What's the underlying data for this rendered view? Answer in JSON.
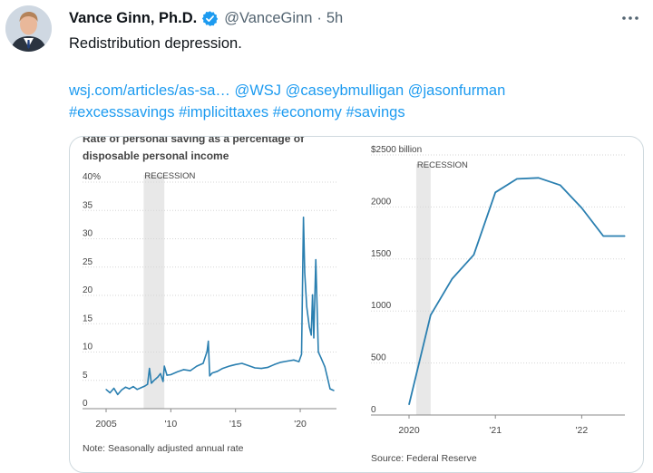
{
  "tweet": {
    "author_name": "Vance Ginn, Ph.D.",
    "handle": "@VanceGinn",
    "separator": "·",
    "time": "5h",
    "text": "Redistribution depression.",
    "links_line1": [
      "wsj.com/articles/as-sa…",
      "@WSJ",
      "@caseybmulligan",
      "@jasonfurman"
    ],
    "links_line2": [
      "#excesssavings",
      "#implicittaxes",
      "#economy",
      "#savings"
    ]
  },
  "colors": {
    "link": "#1d9bf0",
    "verified": "#1d9bf0",
    "series": "#2a7fb0",
    "recession": "#e8e8e8"
  },
  "chart_data": [
    {
      "type": "line",
      "title": "Rate of personal saving as a percentage of disposable personal income",
      "title_lines": [
        "Rate of personal saving as a percentage of",
        "disposable personal income"
      ],
      "recession_label": "RECESSION",
      "recession_span": [
        2007.9,
        2009.5
      ],
      "ylim": [
        0,
        40
      ],
      "yticks": [
        {
          "v": 40,
          "label": "40%"
        },
        {
          "v": 35,
          "label": "35"
        },
        {
          "v": 30,
          "label": "30"
        },
        {
          "v": 25,
          "label": "25"
        },
        {
          "v": 20,
          "label": "20"
        },
        {
          "v": 15,
          "label": "15"
        },
        {
          "v": 10,
          "label": "10"
        },
        {
          "v": 5,
          "label": "5"
        },
        {
          "v": 0,
          "label": "0"
        }
      ],
      "xlim": [
        2005,
        2022.8
      ],
      "xticks": [
        {
          "v": 2005,
          "label": "2005"
        },
        {
          "v": 2010,
          "label": "'10"
        },
        {
          "v": 2015,
          "label": "'15"
        },
        {
          "v": 2020,
          "label": "'20"
        }
      ],
      "note": "Note: Seasonally adjusted annual rate",
      "x": [
        2005.0,
        2005.3,
        2005.6,
        2005.9,
        2006.2,
        2006.5,
        2006.8,
        2007.1,
        2007.4,
        2007.7,
        2008.0,
        2008.2,
        2008.35,
        2008.5,
        2008.7,
        2009.0,
        2009.2,
        2009.4,
        2009.5,
        2009.7,
        2010.0,
        2010.5,
        2011.0,
        2011.5,
        2012.0,
        2012.5,
        2012.8,
        2012.9,
        2013.0,
        2013.2,
        2013.6,
        2014.0,
        2014.5,
        2015.0,
        2015.5,
        2016.0,
        2016.5,
        2017.0,
        2017.5,
        2018.0,
        2018.5,
        2019.0,
        2019.5,
        2019.9,
        2020.1,
        2020.25,
        2020.35,
        2020.5,
        2020.7,
        2020.85,
        2020.95,
        2021.05,
        2021.2,
        2021.4,
        2021.6,
        2021.9,
        2022.1,
        2022.3,
        2022.6
      ],
      "y": [
        3.4,
        2.8,
        3.6,
        2.5,
        3.3,
        3.8,
        3.5,
        3.9,
        3.4,
        3.7,
        4.0,
        4.3,
        7.1,
        4.5,
        5.0,
        5.6,
        6.2,
        4.8,
        7.5,
        5.9,
        6.0,
        6.5,
        6.9,
        6.7,
        7.5,
        8.0,
        10.1,
        11.9,
        5.8,
        6.3,
        6.6,
        7.1,
        7.5,
        7.8,
        8.0,
        7.6,
        7.2,
        7.1,
        7.3,
        7.8,
        8.2,
        8.4,
        8.6,
        8.3,
        9.6,
        33.8,
        24.0,
        18.0,
        14.5,
        13.0,
        20.1,
        12.5,
        26.3,
        10.0,
        9.0,
        7.4,
        5.5,
        3.5,
        3.2
      ]
    },
    {
      "type": "line",
      "title": "",
      "ylim": [
        0,
        2500
      ],
      "yticks": [
        {
          "v": 2500,
          "label": "$2500 billion"
        },
        {
          "v": 2000,
          "label": "2000"
        },
        {
          "v": 1500,
          "label": "1500"
        },
        {
          "v": 1000,
          "label": "1000"
        },
        {
          "v": 500,
          "label": "500"
        },
        {
          "v": 0,
          "label": "0"
        }
      ],
      "recession_label": "RECESSION",
      "recession_span": [
        "2020-02-01",
        "2020-04-01"
      ],
      "xlim": [
        "2020-01-01",
        "2022-07-01"
      ],
      "xticks": [
        {
          "v": "2020-01-01",
          "label": "2020"
        },
        {
          "v": "2021-01-01",
          "label": "'21"
        },
        {
          "v": "2022-01-01",
          "label": "'22"
        }
      ],
      "note": "Source: Federal Reserve",
      "x": [
        "2020-01-01",
        "2020-04-01",
        "2020-07-01",
        "2020-10-01",
        "2021-01-01",
        "2021-04-01",
        "2021-07-01",
        "2021-10-01",
        "2022-01-01",
        "2022-04-01",
        "2022-07-01"
      ],
      "y": [
        100,
        960,
        1310,
        1540,
        2140,
        2270,
        2280,
        2210,
        1990,
        1720,
        1720
      ]
    }
  ]
}
